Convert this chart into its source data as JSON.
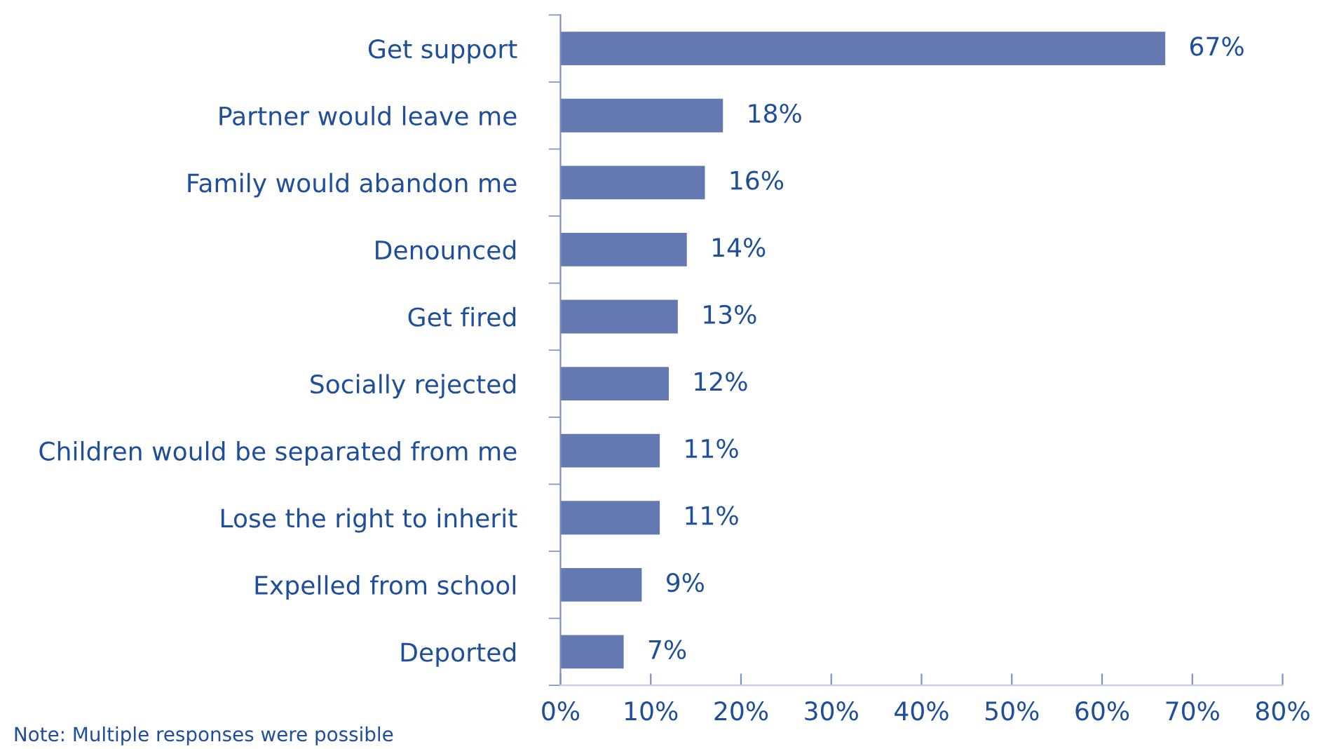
{
  "chart_data": {
    "type": "bar",
    "orientation": "horizontal",
    "categories": [
      "Get support",
      "Partner would leave me",
      "Family would abandon me",
      "Denounced",
      "Get fired",
      "Socially rejected",
      "Children would be separated from me",
      "Lose the right to inherit",
      "Expelled from school",
      "Deported"
    ],
    "values": [
      67,
      18,
      16,
      14,
      13,
      12,
      11,
      11,
      9,
      7
    ],
    "value_labels": [
      "67%",
      "18%",
      "16%",
      "14%",
      "13%",
      "12%",
      "11%",
      "11%",
      "9%",
      "7%"
    ],
    "color": "#6479b1",
    "xlim": [
      0,
      80
    ],
    "xticks": [
      {
        "value": 0,
        "label": "0%"
      },
      {
        "value": 10,
        "label": "10%"
      },
      {
        "value": 20,
        "label": "20%"
      },
      {
        "value": 30,
        "label": "30%"
      },
      {
        "value": 40,
        "label": "40%"
      },
      {
        "value": 50,
        "label": "50%"
      },
      {
        "value": 60,
        "label": "60%"
      },
      {
        "value": 70,
        "label": "70%"
      },
      {
        "value": 80,
        "label": "80%"
      }
    ],
    "grid": false,
    "legend": false,
    "annotations": [
      "Note: Multiple responses were possible"
    ]
  }
}
